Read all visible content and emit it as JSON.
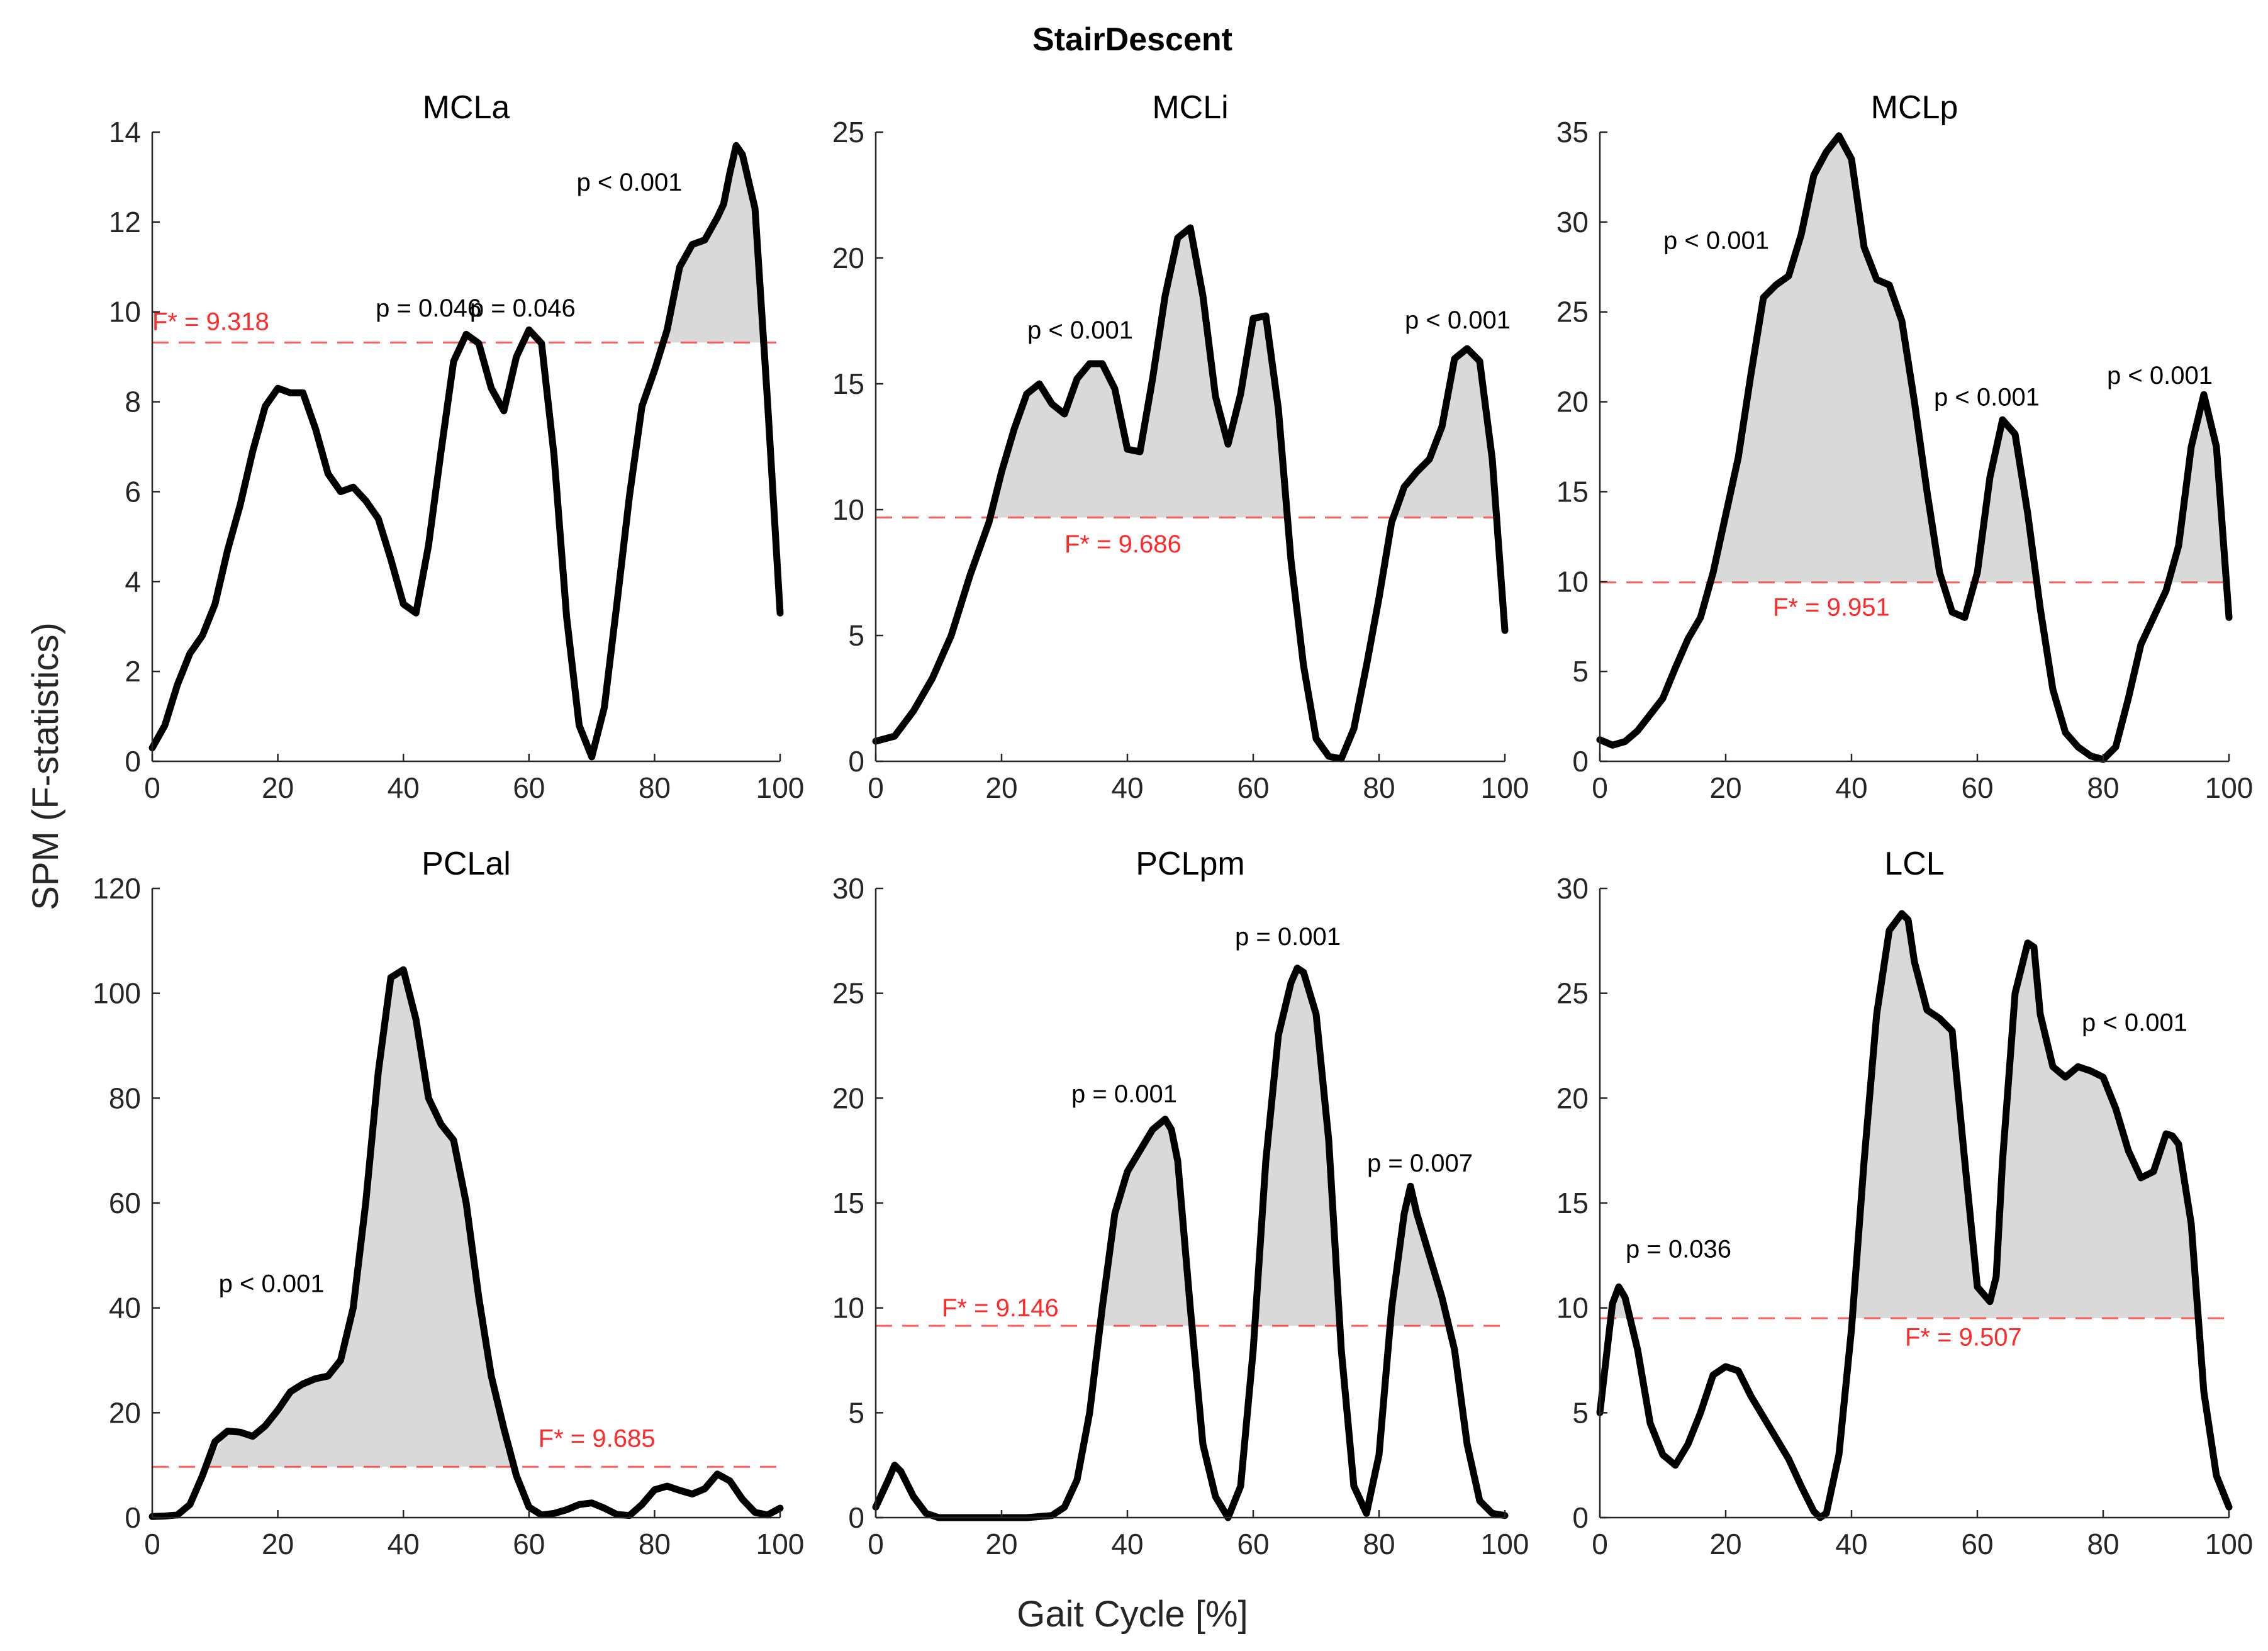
{
  "figure": {
    "super_title": "StairDescent",
    "ylabel": "SPM (F-statistics)",
    "xlabel": "Gait Cycle [%]"
  },
  "colors": {
    "curve": "#000000",
    "fill": "#d9d9d9",
    "threshold": "#ff2a2a",
    "axis": "#262626"
  },
  "chart_data": [
    {
      "type": "line",
      "title": "MCLa",
      "xlim": [
        0,
        100
      ],
      "ylim": [
        0,
        14
      ],
      "xticks": [
        0,
        20,
        40,
        60,
        80,
        100
      ],
      "yticks": [
        0,
        2,
        4,
        6,
        8,
        10,
        12,
        14
      ],
      "threshold": 9.318,
      "threshold_label": "F* = 9.318",
      "series": [
        {
          "name": "SPM",
          "x": [
            0,
            2,
            4,
            6,
            8,
            10,
            12,
            14,
            16,
            18,
            20,
            22,
            24,
            26,
            28,
            30,
            32,
            34,
            36,
            38,
            40,
            42,
            44,
            46,
            48,
            50,
            52,
            54,
            56,
            58,
            60,
            62,
            64,
            66,
            68,
            70,
            72,
            74,
            76,
            78,
            80,
            82,
            84,
            86,
            88,
            90,
            91,
            92,
            93,
            94,
            96,
            98,
            100
          ],
          "y": [
            0.3,
            0.8,
            1.7,
            2.4,
            2.8,
            3.5,
            4.7,
            5.7,
            6.9,
            7.9,
            8.3,
            8.2,
            8.2,
            7.4,
            6.4,
            6.0,
            6.1,
            5.8,
            5.4,
            4.5,
            3.5,
            3.3,
            4.8,
            6.9,
            8.9,
            9.5,
            9.3,
            8.3,
            7.8,
            9.0,
            9.6,
            9.3,
            6.8,
            3.2,
            0.8,
            0.1,
            1.2,
            3.5,
            5.9,
            7.9,
            8.7,
            9.6,
            11.0,
            11.5,
            11.6,
            12.1,
            12.4,
            13.1,
            13.7,
            13.5,
            12.3,
            8.0,
            3.3
          ]
        }
      ],
      "annotations": [
        {
          "text": "p = 0.046",
          "x": 44,
          "y": 9.9
        },
        {
          "text": "p = 0.046",
          "x": 59,
          "y": 9.9
        },
        {
          "text": "p < 0.001",
          "x": 76,
          "y": 12.7
        }
      ],
      "fstar_pos": {
        "x": 0,
        "y": 9.6,
        "anchor": "start"
      }
    },
    {
      "type": "line",
      "title": "MCLi",
      "xlim": [
        0,
        100
      ],
      "ylim": [
        0,
        25
      ],
      "xticks": [
        0,
        20,
        40,
        60,
        80,
        100
      ],
      "yticks": [
        0,
        5,
        10,
        15,
        20,
        25
      ],
      "threshold": 9.686,
      "threshold_label": "F* = 9.686",
      "series": [
        {
          "name": "SPM",
          "x": [
            0,
            3,
            6,
            9,
            12,
            15,
            18,
            20,
            22,
            24,
            26,
            28,
            30,
            32,
            34,
            36,
            38,
            40,
            42,
            44,
            46,
            48,
            50,
            52,
            54,
            56,
            58,
            60,
            62,
            64,
            66,
            68,
            70,
            72,
            74,
            76,
            78,
            80,
            82,
            84,
            86,
            88,
            90,
            92,
            94,
            96,
            98,
            100
          ],
          "y": [
            0.8,
            1.0,
            2.0,
            3.3,
            5.0,
            7.4,
            9.5,
            11.5,
            13.2,
            14.6,
            15.0,
            14.2,
            13.8,
            15.2,
            15.8,
            15.8,
            14.8,
            12.4,
            12.3,
            15.2,
            18.5,
            20.8,
            21.2,
            18.5,
            14.5,
            12.6,
            14.6,
            17.6,
            17.7,
            14.0,
            8.0,
            3.8,
            0.9,
            0.2,
            0.1,
            1.3,
            3.8,
            6.5,
            9.5,
            10.9,
            11.5,
            12.0,
            13.3,
            16.0,
            16.4,
            15.9,
            12.0,
            5.2
          ]
        }
      ],
      "annotations": [
        {
          "text": "p < 0.001",
          "x": 32.5,
          "y": 16.8
        },
        {
          "text": "p < 0.001",
          "x": 92.5,
          "y": 17.2
        }
      ],
      "fstar_pos": {
        "x": 30,
        "y": 8.3,
        "anchor": "start"
      }
    },
    {
      "type": "line",
      "title": "MCLp",
      "xlim": [
        0,
        100
      ],
      "ylim": [
        0,
        35
      ],
      "xticks": [
        0,
        20,
        40,
        60,
        80,
        100
      ],
      "yticks": [
        0,
        5,
        10,
        15,
        20,
        25,
        30,
        35
      ],
      "threshold": 9.951,
      "threshold_label": "F* = 9.951",
      "series": [
        {
          "name": "SPM",
          "x": [
            0,
            2,
            4,
            6,
            8,
            10,
            12,
            14,
            16,
            18,
            20,
            22,
            24,
            26,
            28,
            30,
            32,
            34,
            36,
            38,
            40,
            42,
            44,
            46,
            48,
            50,
            52,
            54,
            56,
            58,
            60,
            62,
            64,
            66,
            68,
            70,
            72,
            74,
            76,
            78,
            80,
            82,
            84,
            86,
            88,
            90,
            92,
            94,
            96,
            98,
            100
          ],
          "y": [
            1.2,
            0.9,
            1.1,
            1.7,
            2.6,
            3.5,
            5.2,
            6.8,
            8.0,
            10.5,
            13.7,
            16.9,
            21.5,
            25.8,
            26.5,
            27.0,
            29.3,
            32.6,
            33.9,
            34.8,
            33.5,
            28.6,
            26.8,
            26.5,
            24.5,
            20.0,
            15.0,
            10.5,
            8.3,
            8.0,
            10.5,
            15.8,
            19.0,
            18.2,
            13.8,
            8.5,
            4.0,
            1.6,
            0.8,
            0.3,
            0.1,
            0.8,
            3.5,
            6.5,
            8.0,
            9.5,
            12.0,
            17.5,
            20.4,
            17.5,
            8.0
          ]
        }
      ],
      "annotations": [
        {
          "text": "p < 0.001",
          "x": 18.5,
          "y": 28.5
        },
        {
          "text": "p < 0.001",
          "x": 61.5,
          "y": 19.8
        },
        {
          "text": "p < 0.001",
          "x": 89,
          "y": 21.0
        }
      ],
      "fstar_pos": {
        "x": 27.5,
        "y": 8.1,
        "anchor": "start"
      }
    },
    {
      "type": "line",
      "title": "PCLal",
      "xlim": [
        0,
        100
      ],
      "ylim": [
        0,
        120
      ],
      "xticks": [
        0,
        20,
        40,
        60,
        80,
        100
      ],
      "yticks": [
        0,
        20,
        40,
        60,
        80,
        100,
        120
      ],
      "threshold": 9.685,
      "threshold_label": "F* = 9.685",
      "series": [
        {
          "name": "SPM",
          "x": [
            0,
            2,
            4,
            6,
            8,
            10,
            12,
            14,
            16,
            18,
            20,
            22,
            24,
            26,
            28,
            30,
            32,
            34,
            36,
            38,
            40,
            42,
            44,
            46,
            48,
            50,
            52,
            54,
            56,
            58,
            60,
            62,
            64,
            66,
            68,
            70,
            72,
            74,
            76,
            78,
            80,
            82,
            84,
            86,
            88,
            90,
            92,
            94,
            96,
            98,
            100
          ],
          "y": [
            0.2,
            0.3,
            0.5,
            2.5,
            8.0,
            14.5,
            16.5,
            16.3,
            15.5,
            17.5,
            20.5,
            24.0,
            25.5,
            26.5,
            27.0,
            30.0,
            40.0,
            60.0,
            85.0,
            103.0,
            104.5,
            95.0,
            80.0,
            75.0,
            72.0,
            60.0,
            42.0,
            27.0,
            17.0,
            8.0,
            2.0,
            0.5,
            0.8,
            1.5,
            2.5,
            2.8,
            1.8,
            0.6,
            0.4,
            2.5,
            5.3,
            6.0,
            5.2,
            4.5,
            5.5,
            8.3,
            7.0,
            3.5,
            1.0,
            0.5,
            1.8
          ]
        }
      ],
      "annotations": [
        {
          "text": "p < 0.001",
          "x": 19,
          "y": 43
        },
        {
          "text": "p < 0.001",
          "x": 0,
          "y": 0,
          "hidden": true
        }
      ],
      "fstar_pos": {
        "x": 61.5,
        "y": 13.5,
        "anchor": "start"
      }
    },
    {
      "type": "line",
      "title": "PCLpm",
      "xlim": [
        0,
        100
      ],
      "ylim": [
        0,
        30
      ],
      "xticks": [
        0,
        20,
        40,
        60,
        80,
        100
      ],
      "yticks": [
        0,
        5,
        10,
        15,
        20,
        25,
        30
      ],
      "threshold": 9.146,
      "threshold_label": "F* = 9.146",
      "series": [
        {
          "name": "SPM",
          "x": [
            0,
            2,
            3,
            4,
            6,
            8,
            10,
            12,
            16,
            20,
            24,
            28,
            30,
            32,
            34,
            36,
            38,
            40,
            42,
            44,
            46,
            47,
            48,
            50,
            52,
            54,
            56,
            58,
            60,
            62,
            64,
            66,
            67,
            68,
            70,
            72,
            74,
            76,
            78,
            80,
            82,
            84,
            85,
            86,
            88,
            90,
            92,
            94,
            96,
            98,
            100
          ],
          "y": [
            0.5,
            1.8,
            2.5,
            2.2,
            1.0,
            0.2,
            0.0,
            0.0,
            0.0,
            0.0,
            0.0,
            0.1,
            0.5,
            1.8,
            5.0,
            10.0,
            14.5,
            16.5,
            17.5,
            18.5,
            19.0,
            18.5,
            17.0,
            10.0,
            3.5,
            1.0,
            0.0,
            1.5,
            8.0,
            17.0,
            23.0,
            25.5,
            26.2,
            26.0,
            24.0,
            18.0,
            8.0,
            1.5,
            0.2,
            3.0,
            10.0,
            14.5,
            15.8,
            14.5,
            12.5,
            10.5,
            8.0,
            3.5,
            0.8,
            0.2,
            0.1
          ]
        }
      ],
      "annotations": [
        {
          "text": "p = 0.001",
          "x": 39.5,
          "y": 19.8
        },
        {
          "text": "p = 0.001",
          "x": 65.5,
          "y": 27.3
        },
        {
          "text": "p = 0.007",
          "x": 86.5,
          "y": 16.5
        }
      ],
      "fstar_pos": {
        "x": 10.5,
        "y": 9.6,
        "anchor": "start"
      }
    },
    {
      "type": "line",
      "title": "LCL",
      "xlim": [
        0,
        100
      ],
      "ylim": [
        0,
        30
      ],
      "xticks": [
        0,
        20,
        40,
        60,
        80,
        100
      ],
      "yticks": [
        0,
        5,
        10,
        15,
        20,
        25,
        30
      ],
      "threshold": 9.507,
      "threshold_label": "F* = 9.507",
      "series": [
        {
          "name": "SPM",
          "x": [
            0,
            2,
            3,
            4,
            6,
            8,
            10,
            12,
            14,
            16,
            18,
            20,
            22,
            24,
            26,
            28,
            30,
            32,
            34,
            35,
            36,
            38,
            40,
            42,
            44,
            46,
            48,
            49,
            50,
            52,
            54,
            56,
            58,
            60,
            62,
            63,
            64,
            66,
            68,
            69,
            70,
            72,
            74,
            76,
            78,
            80,
            82,
            84,
            86,
            88,
            90,
            91,
            92,
            94,
            96,
            98,
            100
          ],
          "y": [
            5.0,
            10.2,
            11.0,
            10.5,
            8.0,
            4.5,
            3.0,
            2.5,
            3.5,
            5.0,
            6.8,
            7.2,
            7.0,
            5.8,
            4.8,
            3.8,
            2.8,
            1.5,
            0.3,
            0.0,
            0.2,
            3.0,
            9.0,
            17.0,
            24.0,
            28.0,
            28.8,
            28.5,
            26.5,
            24.2,
            23.8,
            23.2,
            17.0,
            11.0,
            10.3,
            11.5,
            17.0,
            25.0,
            27.4,
            27.2,
            24.0,
            21.5,
            21.0,
            21.5,
            21.3,
            21.0,
            19.5,
            17.5,
            16.2,
            16.5,
            18.3,
            18.2,
            17.8,
            14.0,
            6.0,
            2.0,
            0.5
          ]
        }
      ],
      "annotations": [
        {
          "text": "p = 0.036",
          "x": 12.5,
          "y": 12.4
        },
        {
          "text": "p < 0.001",
          "x": 85,
          "y": 23.2
        }
      ],
      "fstar_pos": {
        "x": 48.5,
        "y": 8.2,
        "anchor": "start"
      }
    }
  ]
}
